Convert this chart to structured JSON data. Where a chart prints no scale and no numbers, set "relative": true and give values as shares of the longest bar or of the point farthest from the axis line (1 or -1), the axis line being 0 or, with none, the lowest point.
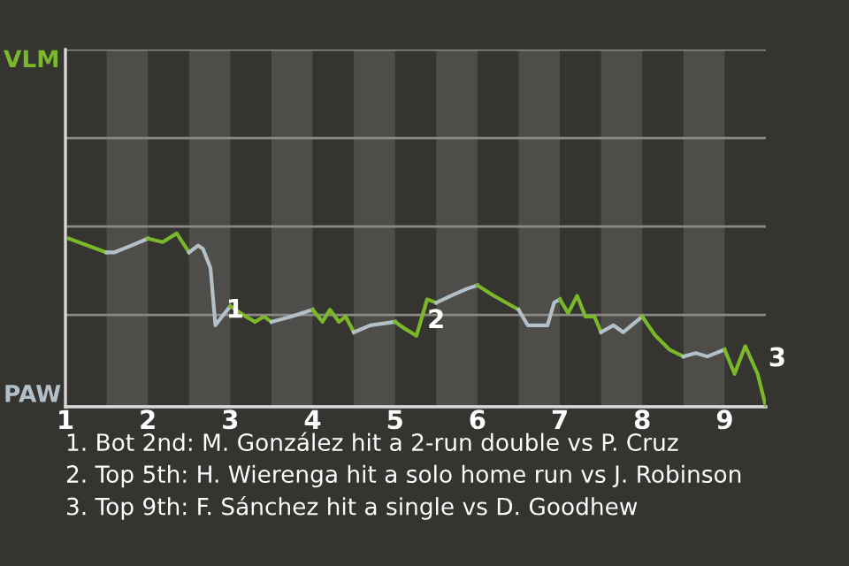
{
  "chart_data": {
    "type": "line",
    "relative": true,
    "series": [
      {
        "color": "#7ab829",
        "x": [
          1.04,
          1.5
        ],
        "values": [
          0.97,
          0.89
        ]
      },
      {
        "color": "#b4c0c8",
        "x": [
          1.5,
          1.59,
          1.8,
          2.0
        ],
        "values": [
          0.89,
          0.89,
          0.93,
          0.97
        ]
      },
      {
        "color": "#7ab829",
        "x": [
          2.0,
          2.18,
          2.35,
          2.5
        ],
        "values": [
          0.97,
          0.95,
          1,
          0.89
        ]
      },
      {
        "color": "#b4c0c8",
        "x": [
          2.5,
          2.61,
          2.67,
          2.76,
          2.82,
          2.9,
          3.0
        ],
        "values": [
          0.89,
          0.93,
          0.91,
          0.8,
          0.47,
          0.52,
          0.58
        ]
      },
      {
        "color": "#7ab829",
        "x": [
          3.0,
          3.19,
          3.3,
          3.41,
          3.5
        ],
        "values": [
          0.58,
          0.52,
          0.49,
          0.52,
          0.49
        ]
      },
      {
        "color": "#b4c0c8",
        "x": [
          3.5,
          3.74,
          4.0
        ],
        "values": [
          0.49,
          0.52,
          0.56
        ]
      },
      {
        "color": "#7ab829",
        "x": [
          4.0,
          4.12,
          4.21,
          4.32,
          4.4,
          4.5
        ],
        "values": [
          0.56,
          0.49,
          0.56,
          0.49,
          0.52,
          0.43
        ]
      },
      {
        "color": "#b4c0c8",
        "x": [
          4.5,
          4.7,
          5.0
        ],
        "values": [
          0.43,
          0.47,
          0.49
        ]
      },
      {
        "color": "#7ab829",
        "x": [
          5.0,
          5.12,
          5.26,
          5.39,
          5.5
        ],
        "values": [
          0.49,
          0.45,
          0.41,
          0.62,
          0.6
        ]
      },
      {
        "color": "#b4c0c8",
        "x": [
          5.5,
          5.68,
          5.87,
          6.0
        ],
        "values": [
          0.6,
          0.64,
          0.68,
          0.7
        ]
      },
      {
        "color": "#7ab829",
        "x": [
          6.0,
          6.2,
          6.5
        ],
        "values": [
          0.7,
          0.64,
          0.56
        ]
      },
      {
        "color": "#b4c0c8",
        "x": [
          6.5,
          6.61,
          6.85,
          6.93,
          7.0
        ],
        "values": [
          0.56,
          0.47,
          0.47,
          0.6,
          0.62
        ]
      },
      {
        "color": "#7ab829",
        "x": [
          7.0,
          7.1,
          7.21,
          7.31,
          7.42,
          7.5
        ],
        "values": [
          0.62,
          0.54,
          0.64,
          0.52,
          0.52,
          0.43
        ]
      },
      {
        "color": "#b4c0c8",
        "x": [
          7.5,
          7.65,
          7.77,
          8.0
        ],
        "values": [
          0.43,
          0.47,
          0.43,
          0.52
        ]
      },
      {
        "color": "#7ab829",
        "x": [
          8.0,
          8.16,
          8.33,
          8.5
        ],
        "values": [
          0.52,
          0.41,
          0.33,
          0.29
        ]
      },
      {
        "color": "#b4c0c8",
        "x": [
          8.5,
          8.65,
          8.79,
          9.0
        ],
        "values": [
          0.29,
          0.31,
          0.29,
          0.33
        ]
      },
      {
        "color": "#7ab829",
        "x": [
          9.0,
          9.12,
          9.25,
          9.4,
          9.5
        ],
        "values": [
          0.33,
          0.19,
          0.35,
          0.19,
          0
        ]
      }
    ],
    "xlim": [
      1,
      9.5
    ],
    "xticks": [
      1,
      2,
      3,
      4,
      5,
      6,
      7,
      8,
      9
    ],
    "ref_lines": [
      {
        "axis": "y",
        "value": 0,
        "label": "PAW",
        "color": "#d8d8d8"
      },
      {
        "axis": "y",
        "value": 0.53,
        "label": null,
        "color": "#8a8986"
      },
      {
        "axis": "y",
        "value": 1.04,
        "label": null,
        "color": "#8a8986"
      },
      {
        "axis": "y",
        "value": 1.55,
        "label": null,
        "color": "#8a8986"
      },
      {
        "axis": "y",
        "value": 2.06,
        "label": "VLM",
        "color": "#8a8986"
      }
    ],
    "bands": [
      {
        "axis": "x",
        "from": 1.5,
        "to": 2,
        "label": null,
        "color": "#4e4d4a"
      },
      {
        "axis": "x",
        "from": 2.5,
        "to": 3,
        "label": null,
        "color": "#4e4d4a"
      },
      {
        "axis": "x",
        "from": 3.5,
        "to": 4,
        "label": null,
        "color": "#4e4d4a"
      },
      {
        "axis": "x",
        "from": 4.5,
        "to": 5,
        "label": null,
        "color": "#4e4d4a"
      },
      {
        "axis": "x",
        "from": 5.5,
        "to": 6,
        "label": null,
        "color": "#4e4d4a"
      },
      {
        "axis": "x",
        "from": 6.5,
        "to": 7,
        "label": null,
        "color": "#4e4d4a"
      },
      {
        "axis": "x",
        "from": 7.5,
        "to": 8,
        "label": null,
        "color": "#4e4d4a"
      },
      {
        "axis": "x",
        "from": 8.5,
        "to": 9,
        "label": null,
        "color": "#4e4d4a"
      }
    ],
    "annotations": [
      {
        "text": "1",
        "x": 2.82,
        "y": 0.47
      },
      {
        "text": "2",
        "x": 5.26,
        "y": 0.41
      },
      {
        "text": "3",
        "x": 9.4,
        "y": 0.19
      },
      "1. Bot 2nd: M. González hit a 2-run double vs P. Cruz",
      "2. Top 5th: H. Wierenga hit a solo home run vs J. Robinson",
      "3. Top 9th: F. Sánchez hit a single vs D. Goodhew"
    ]
  }
}
